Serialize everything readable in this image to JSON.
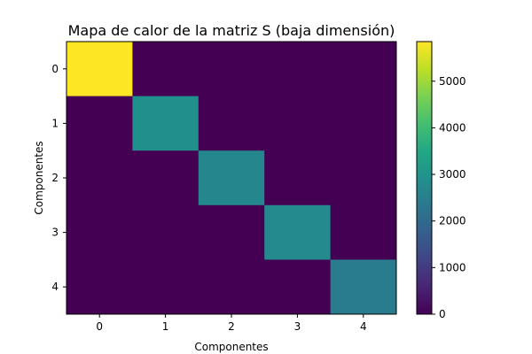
{
  "chart_data": {
    "type": "heatmap",
    "title": "Mapa de calor de la matriz S (baja dimensión)",
    "xlabel": "Componentes",
    "ylabel": "Componentes",
    "x_categories": [
      "0",
      "1",
      "2",
      "3",
      "4"
    ],
    "y_categories": [
      "0",
      "1",
      "2",
      "3",
      "4"
    ],
    "values": [
      [
        5850,
        0,
        0,
        0,
        0
      ],
      [
        0,
        2900,
        0,
        0,
        0
      ],
      [
        0,
        0,
        2700,
        0,
        0
      ],
      [
        0,
        0,
        0,
        2750,
        0
      ],
      [
        0,
        0,
        0,
        0,
        2400
      ]
    ],
    "colormap": "viridis",
    "colorbar": {
      "range": [
        0,
        5850
      ],
      "ticks": [
        0,
        1000,
        2000,
        3000,
        4000,
        5000
      ],
      "tick_labels": [
        "0",
        "1000",
        "2000",
        "3000",
        "4000",
        "5000"
      ]
    }
  }
}
